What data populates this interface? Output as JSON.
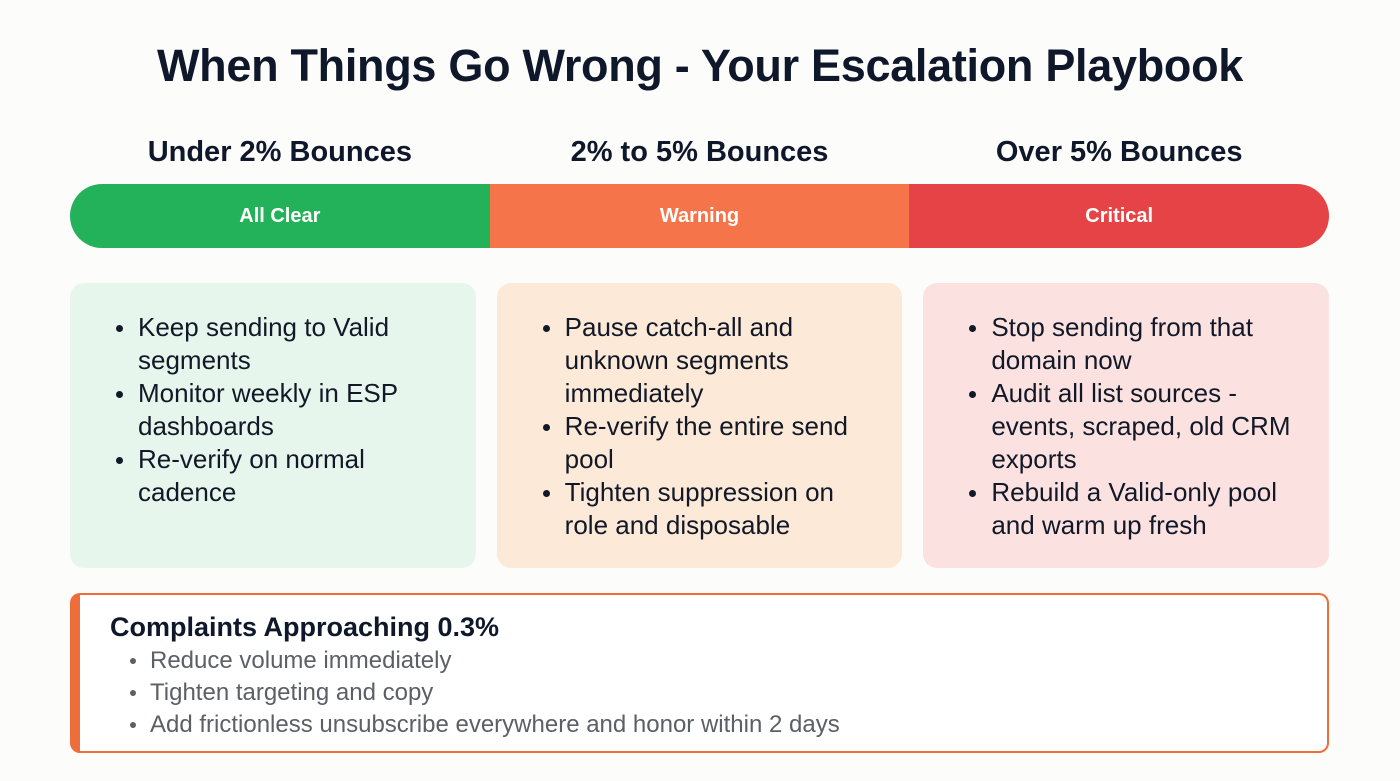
{
  "title": "When Things Go Wrong - Your Escalation Playbook",
  "tiers": [
    {
      "heading": "Under 2% Bounces",
      "status": "All Clear",
      "color": "#23b25a",
      "card_bg": "#e6f6ec",
      "actions": [
        "Keep sending to Valid segments",
        "Monitor weekly in ESP dashboards",
        "Re-verify on normal cadence"
      ]
    },
    {
      "heading": "2% to 5% Bounces",
      "status": "Warning",
      "color": "#f6744a",
      "card_bg": "#fde9d7",
      "actions": [
        "Pause catch-all and unknown segments immediately",
        "Re-verify the entire send pool",
        "Tighten suppression on role and disposable"
      ]
    },
    {
      "heading": "Over 5% Bounces",
      "status": "Critical",
      "color": "#e54346",
      "card_bg": "#fbe1e0",
      "actions": [
        "Stop sending from that domain now",
        "Audit all list sources - events, scraped, old CRM exports",
        "Rebuild a Valid-only pool and warm up fresh"
      ]
    }
  ],
  "complaints": {
    "title": "Complaints Approaching 0.3%",
    "accent_color": "#ef6c3b",
    "actions": [
      "Reduce volume immediately",
      "Tighten targeting and copy",
      "Add frictionless unsubscribe everywhere and honor within 2 days"
    ]
  }
}
